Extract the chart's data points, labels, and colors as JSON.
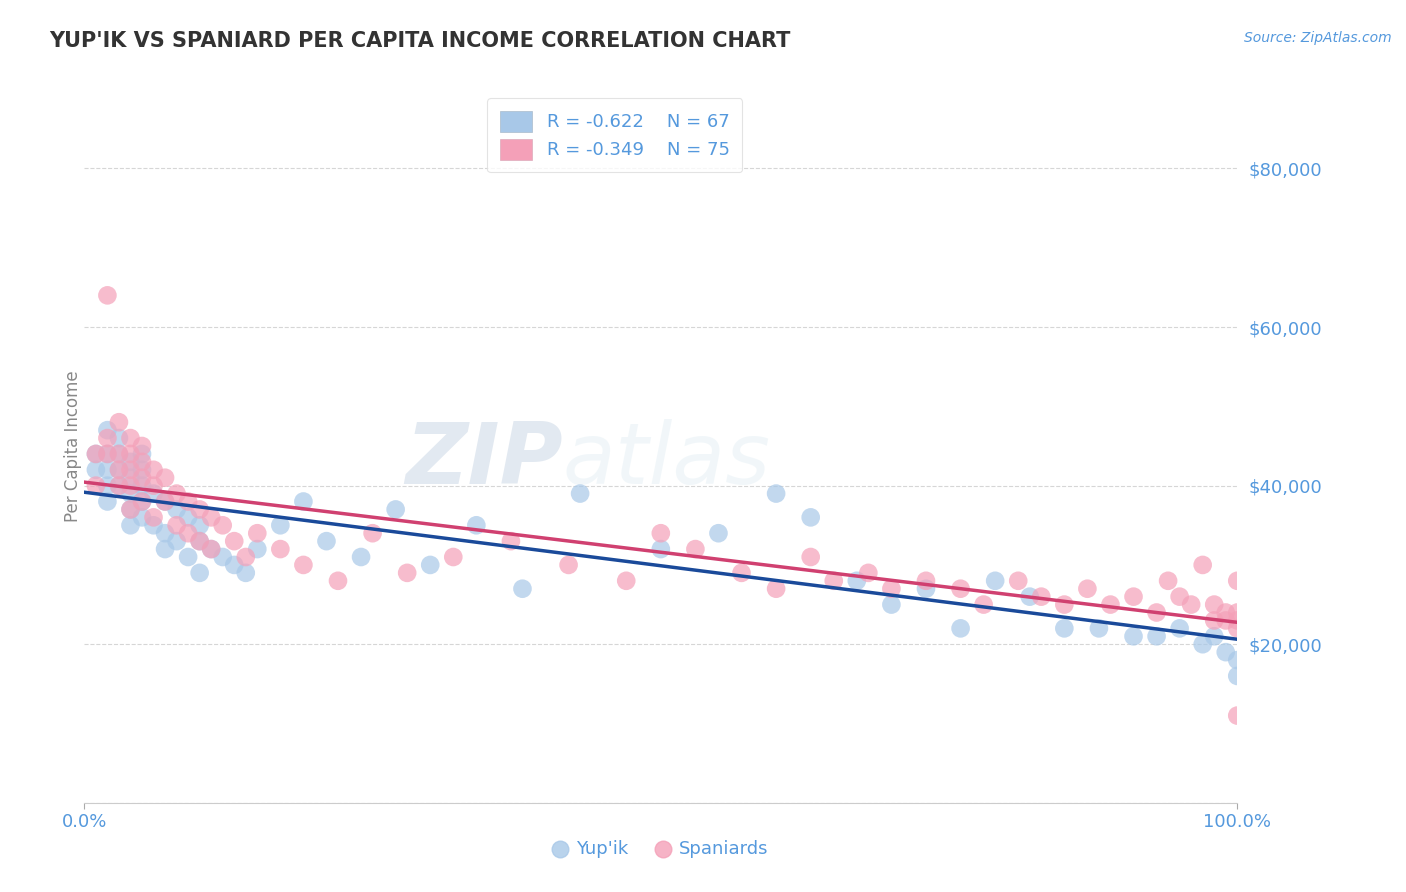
{
  "title": "YUP'IK VS SPANIARD PER CAPITA INCOME CORRELATION CHART",
  "source_text": "Source: ZipAtlas.com",
  "ylabel": "Per Capita Income",
  "xlim": [
    0,
    1.0
  ],
  "ylim": [
    0,
    90000
  ],
  "yticks": [
    0,
    20000,
    40000,
    60000,
    80000
  ],
  "ytick_labels": [
    "",
    "$20,000",
    "$40,000",
    "$60,000",
    "$80,000"
  ],
  "xtick_labels": [
    "0.0%",
    "100.0%"
  ],
  "watermark_zip": "ZIP",
  "watermark_atlas": "atlas",
  "legend_r1": "R = -0.622",
  "legend_n1": "N = 67",
  "legend_r2": "R = -0.349",
  "legend_n2": "N = 75",
  "color_yupik": "#a8c8e8",
  "color_spaniard": "#f4a0b8",
  "color_yupik_line": "#1a4a9a",
  "color_spaniard_line": "#d04070",
  "color_text": "#5599dd",
  "title_color": "#333333",
  "background_color": "#ffffff",
  "grid_color": "#cccccc",
  "yupik_x": [
    0.01,
    0.01,
    0.02,
    0.02,
    0.02,
    0.02,
    0.02,
    0.03,
    0.03,
    0.03,
    0.03,
    0.04,
    0.04,
    0.04,
    0.04,
    0.04,
    0.05,
    0.05,
    0.05,
    0.05,
    0.05,
    0.06,
    0.06,
    0.07,
    0.07,
    0.07,
    0.08,
    0.08,
    0.09,
    0.09,
    0.1,
    0.1,
    0.1,
    0.11,
    0.12,
    0.13,
    0.14,
    0.15,
    0.17,
    0.19,
    0.21,
    0.24,
    0.27,
    0.3,
    0.34,
    0.38,
    0.43,
    0.5,
    0.55,
    0.6,
    0.63,
    0.67,
    0.7,
    0.73,
    0.76,
    0.79,
    0.82,
    0.85,
    0.88,
    0.91,
    0.93,
    0.95,
    0.97,
    0.98,
    0.99,
    1.0,
    1.0
  ],
  "yupik_y": [
    42000,
    44000,
    47000,
    44000,
    42000,
    40000,
    38000,
    46000,
    44000,
    42000,
    40000,
    43000,
    41000,
    39000,
    37000,
    35000,
    44000,
    42000,
    40000,
    38000,
    36000,
    39000,
    35000,
    38000,
    34000,
    32000,
    37000,
    33000,
    36000,
    31000,
    35000,
    33000,
    29000,
    32000,
    31000,
    30000,
    29000,
    32000,
    35000,
    38000,
    33000,
    31000,
    37000,
    30000,
    35000,
    27000,
    39000,
    32000,
    34000,
    39000,
    36000,
    28000,
    25000,
    27000,
    22000,
    28000,
    26000,
    22000,
    22000,
    21000,
    21000,
    22000,
    20000,
    21000,
    19000,
    18000,
    16000
  ],
  "spaniard_x": [
    0.01,
    0.01,
    0.02,
    0.02,
    0.02,
    0.03,
    0.03,
    0.03,
    0.03,
    0.04,
    0.04,
    0.04,
    0.04,
    0.04,
    0.05,
    0.05,
    0.05,
    0.05,
    0.06,
    0.06,
    0.06,
    0.07,
    0.07,
    0.08,
    0.08,
    0.09,
    0.09,
    0.1,
    0.1,
    0.11,
    0.11,
    0.12,
    0.13,
    0.14,
    0.15,
    0.17,
    0.19,
    0.22,
    0.25,
    0.28,
    0.32,
    0.37,
    0.42,
    0.47,
    0.5,
    0.53,
    0.57,
    0.6,
    0.63,
    0.65,
    0.68,
    0.7,
    0.73,
    0.76,
    0.78,
    0.81,
    0.83,
    0.85,
    0.87,
    0.89,
    0.91,
    0.93,
    0.94,
    0.95,
    0.96,
    0.97,
    0.98,
    0.98,
    0.99,
    0.99,
    1.0,
    1.0,
    1.0,
    1.0,
    1.0
  ],
  "spaniard_y": [
    44000,
    40000,
    64000,
    46000,
    44000,
    48000,
    44000,
    42000,
    40000,
    46000,
    44000,
    42000,
    40000,
    37000,
    45000,
    43000,
    41000,
    38000,
    42000,
    40000,
    36000,
    41000,
    38000,
    39000,
    35000,
    38000,
    34000,
    37000,
    33000,
    36000,
    32000,
    35000,
    33000,
    31000,
    34000,
    32000,
    30000,
    28000,
    34000,
    29000,
    31000,
    33000,
    30000,
    28000,
    34000,
    32000,
    29000,
    27000,
    31000,
    28000,
    29000,
    27000,
    28000,
    27000,
    25000,
    28000,
    26000,
    25000,
    27000,
    25000,
    26000,
    24000,
    28000,
    26000,
    25000,
    30000,
    23000,
    25000,
    24000,
    23000,
    28000,
    22000,
    24000,
    23000,
    11000
  ]
}
